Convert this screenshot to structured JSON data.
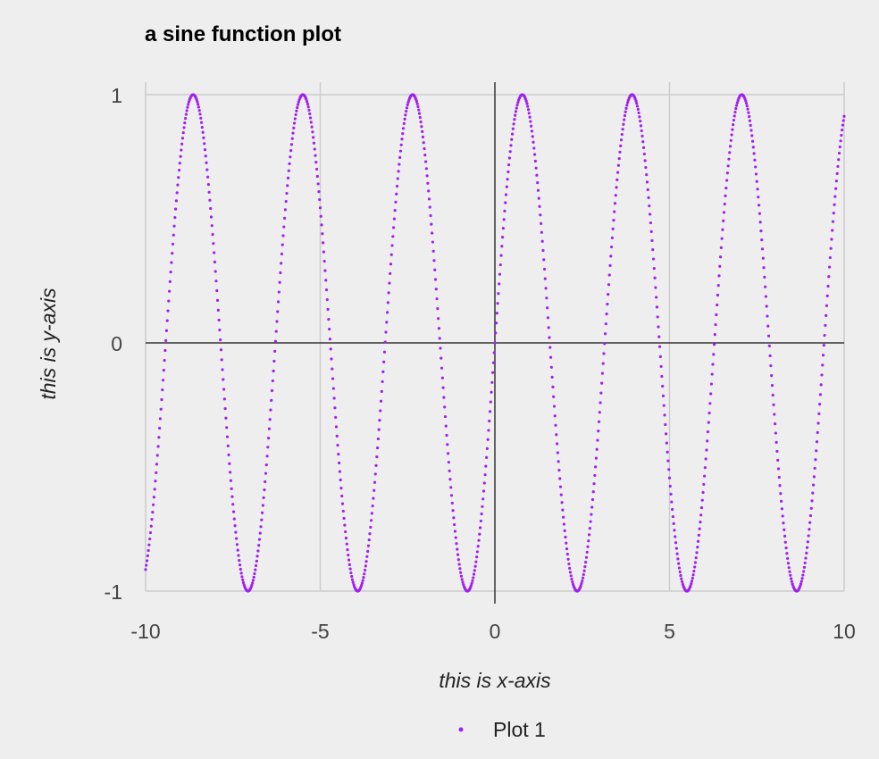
{
  "chart_data": {
    "type": "scatter",
    "title": "a sine function plot",
    "xlabel": "this is x-axis",
    "ylabel": "this is y-axis",
    "xlim": [
      -10,
      10
    ],
    "ylim": [
      -1,
      1
    ],
    "xticks": [
      -10,
      -5,
      0,
      5,
      10
    ],
    "yticks": [
      -1,
      0,
      1
    ],
    "grid": true,
    "legend_position": "bottom-center",
    "series": [
      {
        "name": "Plot 1",
        "color": "#a020f0",
        "function": "sin(2x)",
        "x_start": -10,
        "x_end": 10,
        "x_step": 0.02
      }
    ]
  }
}
